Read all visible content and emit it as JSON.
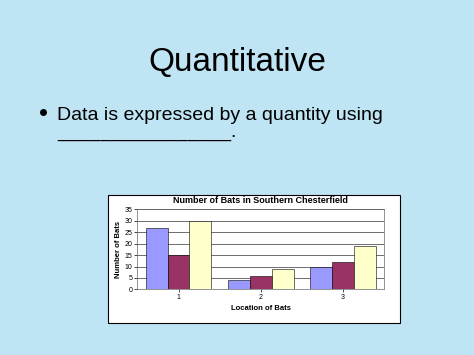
{
  "slide": {
    "title": "Quantitative",
    "bullet": "Data is expressed by a quantity using\n________________."
  },
  "chart_data": {
    "type": "bar",
    "title": "Number of Bats in Southern Chesterfield",
    "x_label": "Location of Bats",
    "y_label": "Number of Bats",
    "categories": [
      "1",
      "2",
      "3"
    ],
    "series": [
      {
        "color": "#9999ff",
        "values": [
          27,
          4,
          10
        ]
      },
      {
        "color": "#993366",
        "values": [
          15,
          6,
          12
        ]
      },
      {
        "color": "#ffffcc",
        "values": [
          30,
          9,
          19
        ]
      }
    ],
    "ylim": [
      0,
      35
    ],
    "yticks": [
      0,
      5,
      10,
      15,
      20,
      25,
      30,
      35
    ],
    "grid": true
  }
}
